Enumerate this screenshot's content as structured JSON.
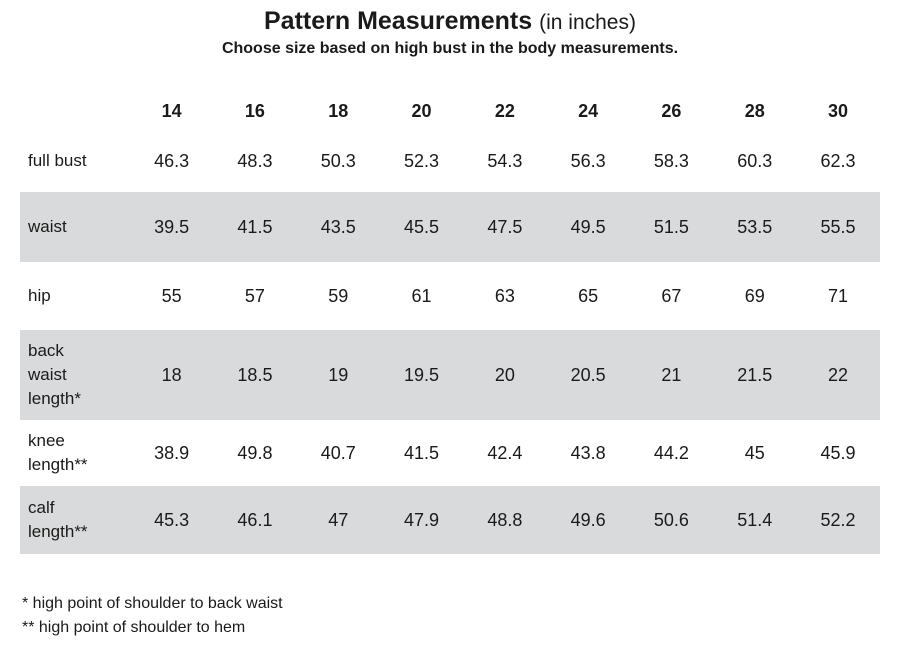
{
  "title": {
    "main": "Pattern Measurements",
    "unit": "(in inches)"
  },
  "subtitle": "Choose size based on high bust in the body measurements.",
  "sizes": [
    "14",
    "16",
    "18",
    "20",
    "22",
    "24",
    "26",
    "28",
    "30"
  ],
  "rows": [
    {
      "label": "full bust",
      "values": [
        "46.3",
        "48.3",
        "50.3",
        "52.3",
        "54.3",
        "56.3",
        "58.3",
        "60.3",
        "62.3"
      ]
    },
    {
      "label": "waist",
      "values": [
        "39.5",
        "41.5",
        "43.5",
        "45.5",
        "47.5",
        "49.5",
        "51.5",
        "53.5",
        "55.5"
      ]
    },
    {
      "label": "hip",
      "values": [
        "55",
        "57",
        "59",
        "61",
        "63",
        "65",
        "67",
        "69",
        "71"
      ]
    },
    {
      "label": "back waist length*",
      "values": [
        "18",
        "18.5",
        "19",
        "19.5",
        "20",
        "20.5",
        "21",
        "21.5",
        "22"
      ]
    },
    {
      "label": "knee length**",
      "values": [
        "38.9",
        "49.8",
        "40.7",
        "41.5",
        "42.4",
        "43.8",
        "44.2",
        "45",
        "45.9"
      ]
    },
    {
      "label": "calf length**",
      "values": [
        "45.3",
        "46.1",
        "47",
        "47.9",
        "48.8",
        "49.6",
        "50.6",
        "51.4",
        "52.2"
      ]
    }
  ],
  "notes": {
    "note1": "* high point of shoulder to back waist",
    "note2": "** high point of shoulder to hem"
  },
  "colors": {
    "shade": "#d9dadb",
    "text": "#1a1a1a"
  }
}
